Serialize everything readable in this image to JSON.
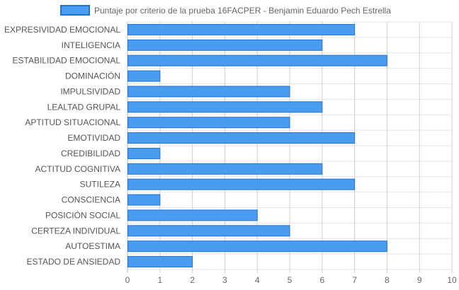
{
  "chart_data": {
    "type": "bar",
    "orientation": "horizontal",
    "categories": [
      "EXPRESIVIDAD EMOCIONAL",
      "INTELIGENCIA",
      "ESTABILIDAD EMOCIONAL",
      "DOMINACIÓN",
      "IMPULSIVIDAD",
      "LEALTAD GRUPAL",
      "APTITUD SITUACIONAL",
      "EMOTIVIDAD",
      "CREDIBILIDAD",
      "ACTITUD COGNITIVA",
      "SUTILEZA",
      "CONSCIENCIA",
      "POSICIÓN SOCIAL",
      "CERTEZA INDIVIDUAL",
      "AUTOESTIMA",
      "ESTADO DE ANSIEDAD"
    ],
    "series": [
      {
        "name": "Puntaje por criterio de la prueba 16FACPER - Benjamin Eduardo Pech Estrella",
        "values": [
          7,
          6,
          8,
          1,
          5,
          6,
          5,
          7,
          1,
          6,
          7,
          1,
          4,
          5,
          8,
          2
        ],
        "color": "#4a9cf0",
        "border_color": "#1e73d8"
      }
    ],
    "xlim": [
      0,
      10
    ],
    "x_ticks": [
      "0",
      "1",
      "2",
      "3",
      "4",
      "5",
      "6",
      "7",
      "8",
      "9",
      "10"
    ],
    "grid": true,
    "legend_position": "top"
  }
}
